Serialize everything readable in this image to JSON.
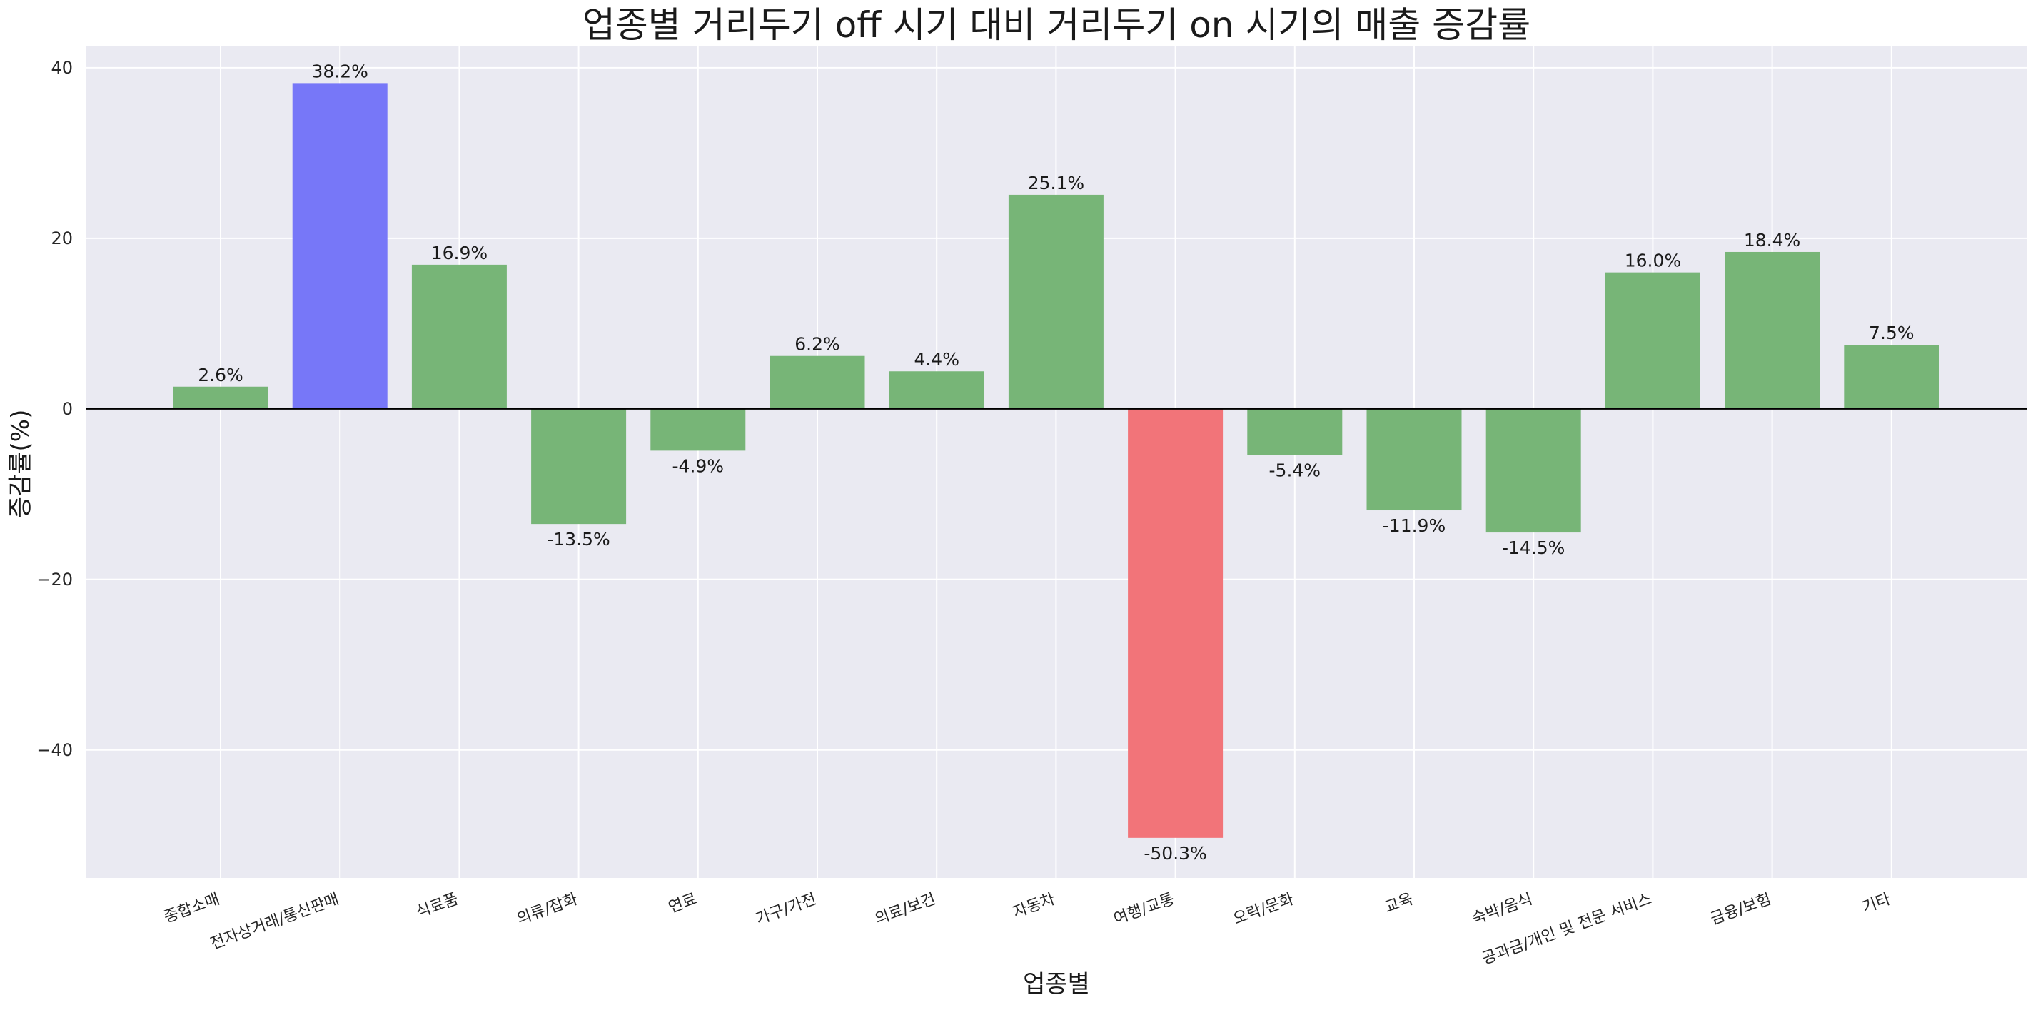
{
  "chart_data": {
    "type": "bar",
    "title": "업종별 거리두기 off 시기 대비 거리두기 on 시기의 매출 증감률",
    "xlabel": "업종별",
    "ylabel": "증감률(%)",
    "ylim": [
      -55,
      42.5
    ],
    "yticks": [
      -40,
      -20,
      0,
      20,
      40
    ],
    "grid": true,
    "categories": [
      "종합소매",
      "전자상거래/통신판매",
      "식료품",
      "의류/잡화",
      "연료",
      "가구/가전",
      "의료/보건",
      "자동차",
      "여행/교통",
      "오락/문화",
      "교육",
      "숙박/음식",
      "공과금/개인 및 전문 서비스",
      "금융/보험",
      "기타"
    ],
    "values": [
      2.6,
      38.2,
      16.9,
      -13.5,
      -4.9,
      6.2,
      4.4,
      25.1,
      -50.3,
      -5.4,
      -11.9,
      -14.5,
      16.0,
      18.4,
      7.5
    ],
    "value_labels": [
      "2.6%",
      "38.2%",
      "16.9%",
      "-13.5%",
      "-4.9%",
      "6.2%",
      "4.4%",
      "25.1%",
      "-50.3%",
      "-5.4%",
      "-11.9%",
      "-14.5%",
      "16.0%",
      "18.4%",
      "7.5%"
    ],
    "bar_colors": [
      "#77b577",
      "#7777f8",
      "#77b577",
      "#77b577",
      "#77b577",
      "#77b577",
      "#77b577",
      "#77b577",
      "#f27479",
      "#77b577",
      "#77b577",
      "#77b577",
      "#77b577",
      "#77b577",
      "#77b577"
    ],
    "background_color": "#eaeaf2",
    "grid_color": "#ffffff",
    "zero_line_color": "#000000"
  }
}
